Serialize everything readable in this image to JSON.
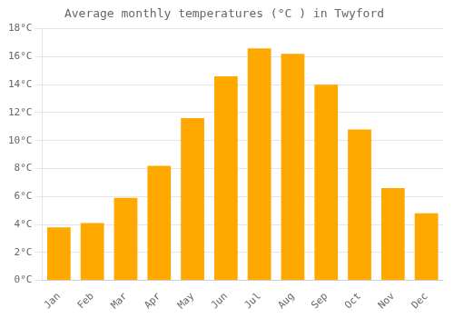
{
  "chart_data": {
    "type": "bar",
    "title": "Average monthly temperatures (°C ) in Twyford",
    "categories": [
      "Jan",
      "Feb",
      "Mar",
      "Apr",
      "May",
      "Jun",
      "Jul",
      "Aug",
      "Sep",
      "Oct",
      "Nov",
      "Dec"
    ],
    "values": [
      3.8,
      4.1,
      5.9,
      8.2,
      11.6,
      14.6,
      16.6,
      16.2,
      14.0,
      10.8,
      6.6,
      4.8
    ],
    "color": "#FFA800",
    "ylim": [
      0,
      18
    ],
    "yticks": [
      {
        "value": 0,
        "label": "0°C"
      },
      {
        "value": 2,
        "label": "2°C"
      },
      {
        "value": 4,
        "label": "4°C"
      },
      {
        "value": 6,
        "label": "6°C"
      },
      {
        "value": 8,
        "label": "8°C"
      },
      {
        "value": 10,
        "label": "10°C"
      },
      {
        "value": 12,
        "label": "12°C"
      },
      {
        "value": 14,
        "label": "14°C"
      },
      {
        "value": 16,
        "label": "16°C"
      },
      {
        "value": 18,
        "label": "18°C"
      }
    ],
    "grid": true
  }
}
